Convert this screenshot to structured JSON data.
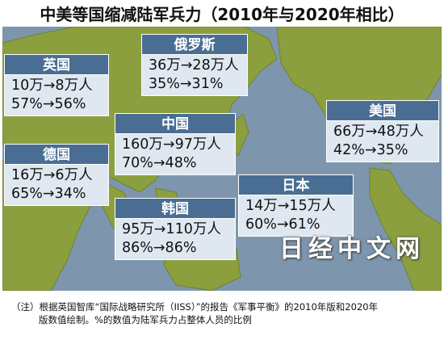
{
  "title": "中美等国缩减陆军兵力（2010年与2020年相比）",
  "colors": {
    "header_bg": "#4a6e93",
    "card_body_bg": "#dfe8f0",
    "ocean": "#7d96ad",
    "land": "#8c9f3e"
  },
  "chart_data": {
    "type": "table",
    "periods": [
      "2010年",
      "2020年"
    ],
    "countries": [
      {
        "name": "英国",
        "troops": "10万→8万人",
        "ratio": "57%→56%",
        "troops_2010": 10,
        "troops_2020": 8,
        "ratio_2010": 57,
        "ratio_2020": 56
      },
      {
        "name": "俄罗斯",
        "troops": "36万→28万人",
        "ratio": "35%→31%",
        "troops_2010": 36,
        "troops_2020": 28,
        "ratio_2010": 35,
        "ratio_2020": 31
      },
      {
        "name": "中国",
        "troops": "160万→97万人",
        "ratio": "70%→48%",
        "troops_2010": 160,
        "troops_2020": 97,
        "ratio_2010": 70,
        "ratio_2020": 48
      },
      {
        "name": "德国",
        "troops": "16万→6万人",
        "ratio": "65%→34%",
        "troops_2010": 16,
        "troops_2020": 6,
        "ratio_2010": 65,
        "ratio_2020": 34
      },
      {
        "name": "美国",
        "troops": "66万→48万人",
        "ratio": "42%→35%",
        "troops_2010": 66,
        "troops_2020": 48,
        "ratio_2010": 42,
        "ratio_2020": 35
      },
      {
        "name": "日本",
        "troops": "14万→15万人",
        "ratio": "60%→61%",
        "troops_2010": 14,
        "troops_2020": 15,
        "ratio_2010": 60,
        "ratio_2020": 61
      },
      {
        "name": "韩国",
        "troops": "95万→110万人",
        "ratio": "86%→86%",
        "troops_2010": 95,
        "troops_2020": 110,
        "ratio_2010": 86,
        "ratio_2020": 86
      }
    ],
    "troops_unit": "万人",
    "ratio_unit": "%"
  },
  "watermark": "日经中文网",
  "note": {
    "line1": "（注）根据英国智库“国际战略研究所（IISS）”的报告《军事平衡》的2010年版和2020年",
    "line2": "版数值绘制。%的数值为陆军兵力占整体人员的比例"
  }
}
